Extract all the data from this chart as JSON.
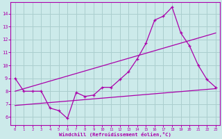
{
  "bg_color": "#cceaea",
  "grid_color": "#aacece",
  "line_color": "#aa00aa",
  "xlabel": "Windchill (Refroidissement éolien,°C)",
  "x_ticks": [
    0,
    1,
    2,
    3,
    4,
    5,
    6,
    7,
    8,
    9,
    10,
    11,
    12,
    13,
    14,
    15,
    16,
    17,
    18,
    19,
    20,
    21,
    22,
    23
  ],
  "y_ticks": [
    6,
    7,
    8,
    9,
    10,
    11,
    12,
    13,
    14
  ],
  "ylim": [
    5.4,
    14.9
  ],
  "xlim": [
    -0.5,
    23.5
  ],
  "main_x": [
    0,
    1,
    2,
    3,
    4,
    5,
    6,
    7,
    8,
    9,
    10,
    11,
    12,
    13,
    14,
    15,
    16,
    17,
    18,
    19,
    20,
    21,
    22,
    23
  ],
  "main_y": [
    9.0,
    8.0,
    8.0,
    8.0,
    6.7,
    6.5,
    5.9,
    7.9,
    7.6,
    7.7,
    8.3,
    8.3,
    8.9,
    9.5,
    10.5,
    11.7,
    13.5,
    13.8,
    14.5,
    12.5,
    11.5,
    10.0,
    8.9,
    8.3
  ],
  "trend1_x": [
    0,
    23
  ],
  "trend1_y": [
    8.0,
    12.5
  ],
  "trend2_x": [
    0,
    23
  ],
  "trend2_y": [
    6.9,
    8.2
  ]
}
